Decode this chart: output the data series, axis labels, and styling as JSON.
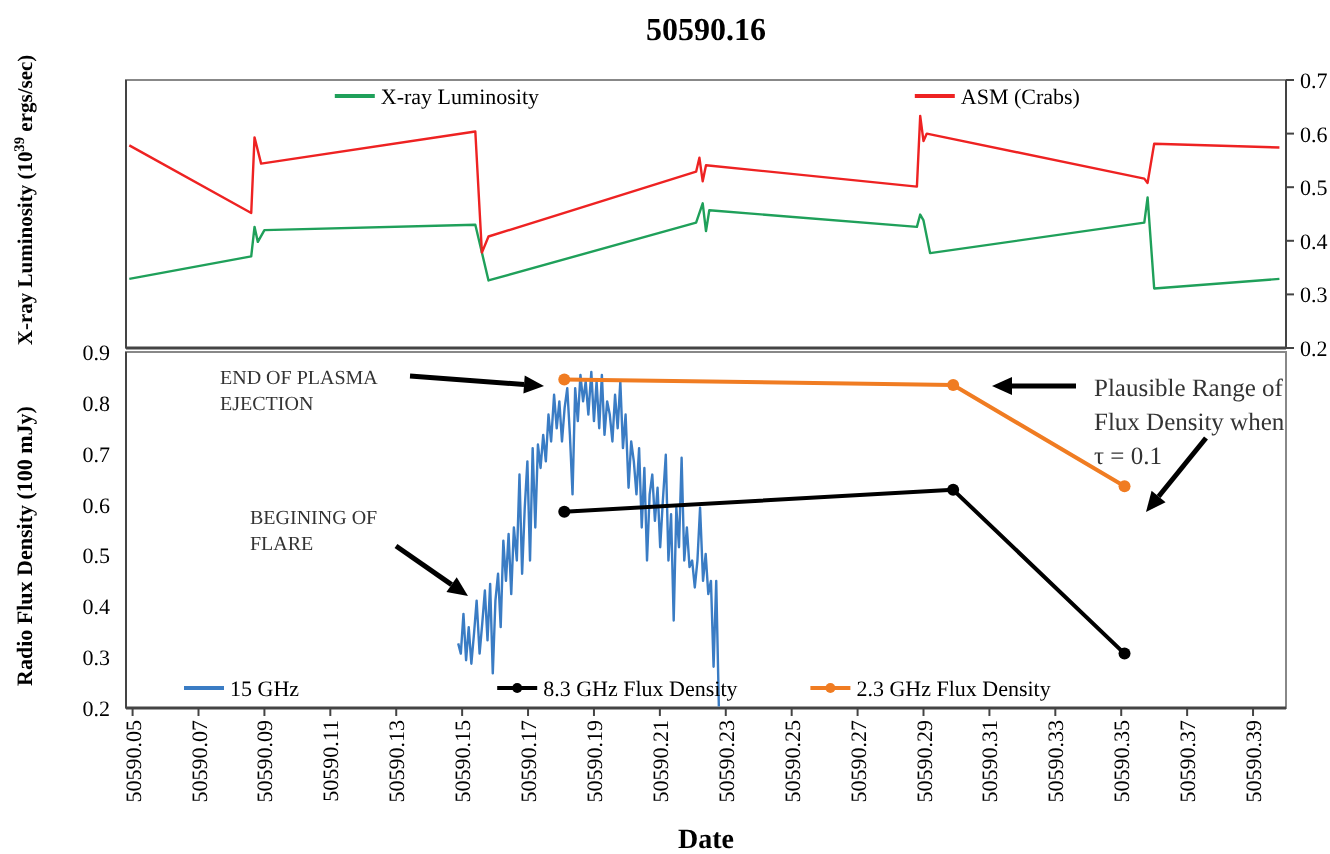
{
  "chart_data": [
    {
      "type": "line",
      "title": "50590.16",
      "ylabel": "X-ray Luminosity (10$^{39}$ ergs/sec)",
      "xlim": [
        50590.048,
        50590.4
      ],
      "y2lim": [
        0.2,
        0.7
      ],
      "y2ticks": [
        0.2,
        0.3,
        0.4,
        0.5,
        0.6,
        0.7
      ],
      "legend": "top",
      "series": [
        {
          "name": "X-ray Luminosity",
          "color": "#1fa05a",
          "axis": "y2",
          "marker": "none",
          "x": [
            50590.049,
            50590.086,
            50590.087,
            50590.088,
            50590.09,
            50590.154,
            50590.158,
            50590.221,
            50590.223,
            50590.224,
            50590.225,
            50590.288,
            50590.289,
            50590.29,
            50590.292,
            50590.357,
            50590.358,
            50590.36,
            50590.398
          ],
          "values": [
            0.329,
            0.371,
            0.426,
            0.398,
            0.42,
            0.43,
            0.326,
            0.434,
            0.47,
            0.418,
            0.457,
            0.426,
            0.449,
            0.438,
            0.377,
            0.434,
            0.481,
            0.311,
            0.329
          ]
        },
        {
          "name": "ASM (Crabs)",
          "color": "#ee2222",
          "axis": "y2",
          "marker": "none",
          "x": [
            50590.049,
            50590.086,
            50590.087,
            50590.089,
            50590.154,
            50590.156,
            50590.158,
            50590.221,
            50590.222,
            50590.223,
            50590.224,
            50590.288,
            50590.289,
            50590.29,
            50590.291,
            50590.357,
            50590.358,
            50590.36,
            50590.398
          ],
          "values": [
            0.578,
            0.452,
            0.593,
            0.544,
            0.604,
            0.378,
            0.408,
            0.529,
            0.555,
            0.511,
            0.541,
            0.501,
            0.633,
            0.586,
            0.6,
            0.516,
            0.508,
            0.581,
            0.574
          ]
        }
      ]
    },
    {
      "type": "line",
      "xlabel": "Date",
      "ylabel": "Radio Flux Density (100 mJy)",
      "xlim": [
        50590.048,
        50590.4
      ],
      "xticks": [
        50590.05,
        50590.07,
        50590.09,
        50590.11,
        50590.13,
        50590.15,
        50590.17,
        50590.19,
        50590.21,
        50590.23,
        50590.25,
        50590.27,
        50590.29,
        50590.31,
        50590.33,
        50590.35,
        50590.37,
        50590.39
      ],
      "ylim": [
        0.2,
        0.9
      ],
      "yticks": [
        0.2,
        0.3,
        0.4,
        0.5,
        0.6,
        0.7,
        0.8,
        0.9
      ],
      "legend": "bottom",
      "annotations": [
        "END OF PLASMA EJECTION",
        "BEGINING OF FLARE",
        "Plausible Range of Flux Density when τ = 0.1"
      ],
      "series": [
        {
          "name": "15 GHz",
          "color": "#3a7cc4",
          "marker": "none",
          "x": [
            50590.1488,
            50590.1496,
            50590.1504,
            50590.1512,
            50590.152,
            50590.1528,
            50590.1536,
            50590.1544,
            50590.1553,
            50590.1561,
            50590.1569,
            50590.1577,
            50590.1585,
            50590.1593,
            50590.1601,
            50590.1609,
            50590.1617,
            50590.1625,
            50590.1633,
            50590.1641,
            50590.1649,
            50590.1657,
            50590.1666,
            50590.1674,
            50590.1682,
            50590.169,
            50590.1698,
            50590.1706,
            50590.1714,
            50590.1722,
            50590.173,
            50590.1738,
            50590.1746,
            50590.1754,
            50590.1762,
            50590.177,
            50590.1779,
            50590.1787,
            50590.1795,
            50590.1803,
            50590.1811,
            50590.1819,
            50590.1827,
            50590.1835,
            50590.1843,
            50590.1851,
            50590.1859,
            50590.1867,
            50590.1875,
            50590.1883,
            50590.1892,
            50590.19,
            50590.1908,
            50590.1916,
            50590.1924,
            50590.1932,
            50590.194,
            50590.1948,
            50590.1956,
            50590.1964,
            50590.1972,
            50590.198,
            50590.1988,
            50590.1996,
            50590.2005,
            50590.2013,
            50590.2021,
            50590.2029,
            50590.2037,
            50590.2045,
            50590.2053,
            50590.2061,
            50590.2069,
            50590.2077,
            50590.2085,
            50590.2093,
            50590.2101,
            50590.2109,
            50590.2118,
            50590.2126,
            50590.2134,
            50590.2142,
            50590.215,
            50590.2158,
            50590.2166,
            50590.2174,
            50590.2182,
            50590.219,
            50590.2198,
            50590.2206,
            50590.2214,
            50590.2222,
            50590.2231,
            50590.2239,
            50590.2247,
            50590.2255,
            50590.2263,
            50590.2271,
            50590.2279
          ],
          "values": [
            0.327,
            0.307,
            0.385,
            0.294,
            0.359,
            0.287,
            0.346,
            0.411,
            0.307,
            0.366,
            0.431,
            0.333,
            0.444,
            0.268,
            0.411,
            0.464,
            0.359,
            0.529,
            0.45,
            0.542,
            0.424,
            0.555,
            0.49,
            0.659,
            0.464,
            0.594,
            0.685,
            0.49,
            0.711,
            0.555,
            0.718,
            0.672,
            0.737,
            0.685,
            0.777,
            0.724,
            0.816,
            0.75,
            0.803,
            0.724,
            0.79,
            0.829,
            0.737,
            0.62,
            0.829,
            0.764,
            0.855,
            0.803,
            0.842,
            0.777,
            0.861,
            0.764,
            0.842,
            0.75,
            0.855,
            0.737,
            0.803,
            0.777,
            0.724,
            0.816,
            0.75,
            0.842,
            0.711,
            0.777,
            0.633,
            0.724,
            0.685,
            0.62,
            0.711,
            0.555,
            0.672,
            0.49,
            0.62,
            0.659,
            0.568,
            0.633,
            0.516,
            0.607,
            0.698,
            0.49,
            0.581,
            0.372,
            0.594,
            0.516,
            0.692,
            0.49,
            0.555,
            0.477,
            0.49,
            0.437,
            0.49,
            0.594,
            0.45,
            0.503,
            0.424,
            0.45,
            0.281,
            0.45,
            0.203
          ]
        },
        {
          "name": "8.3 GHz Flux Density",
          "color": "#000000",
          "marker": "circle",
          "x": [
            50590.181,
            50590.299,
            50590.351
          ],
          "values": [
            0.586,
            0.629,
            0.307
          ]
        },
        {
          "name": "2.3 GHz Flux Density",
          "color": "#f07c22",
          "marker": "circle",
          "x": [
            50590.181,
            50590.299,
            50590.351
          ],
          "values": [
            0.846,
            0.835,
            0.636
          ]
        }
      ]
    }
  ]
}
